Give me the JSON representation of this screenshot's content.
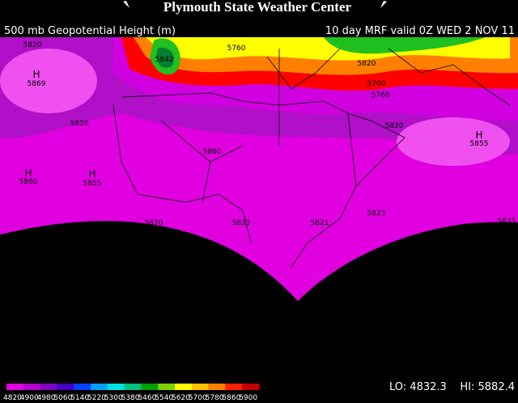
{
  "header": {
    "title": "Plymouth State Weather Center",
    "left": "500 mb Geopotential Height (m)",
    "right": "10 day MRF valid 0Z WED 2 NOV 11"
  },
  "contour_labels": [
    "5820",
    "5869",
    "5842",
    "5760",
    "5820",
    "5700",
    "5760",
    "5820",
    "5820",
    "5860",
    "5855",
    "5860",
    "5855",
    "5870",
    "5823",
    "5821",
    "5823",
    "5835"
  ],
  "high_marks": [
    "H",
    "H",
    "H",
    "H"
  ],
  "scale": {
    "labels": [
      "4820",
      "4900",
      "4980",
      "5060",
      "5140",
      "5220",
      "5300",
      "5380",
      "5460",
      "5540",
      "5620",
      "5700",
      "5780",
      "5860",
      "5900"
    ],
    "low": "LO: 4832.3",
    "high": "HI: 5882.4"
  }
}
